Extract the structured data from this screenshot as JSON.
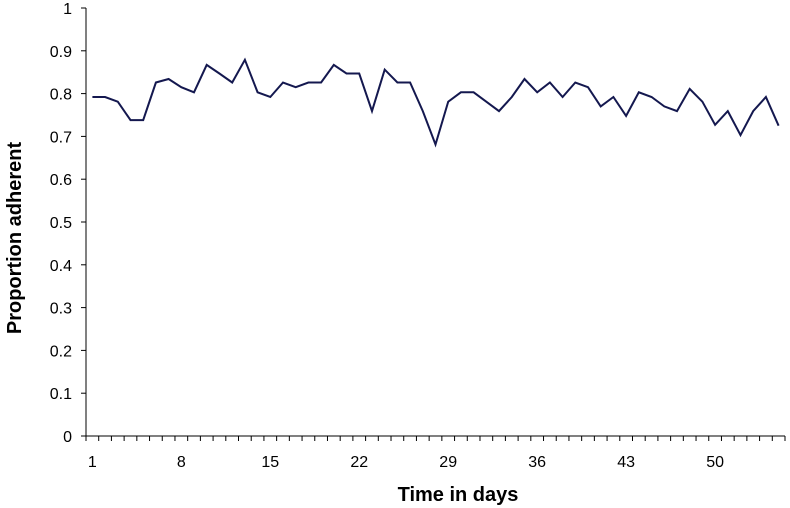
{
  "chart_data": {
    "type": "line",
    "title": "",
    "xlabel": "Time in days",
    "ylabel": "Proportion adherent",
    "xlim": [
      1,
      55
    ],
    "ylim": [
      0,
      1
    ],
    "x_ticks": [
      1,
      8,
      15,
      22,
      29,
      36,
      43,
      50
    ],
    "y_ticks": [
      0,
      0.1,
      0.2,
      0.3,
      0.4,
      0.5,
      0.6,
      0.7,
      0.8,
      0.9,
      1
    ],
    "y_tick_labels": [
      "0",
      "0.1",
      "0.2",
      "0.3",
      "0.4",
      "0.5",
      "0.6",
      "0.7",
      "0.8",
      "0.9",
      "1"
    ],
    "grid": false,
    "legend": "none",
    "line_color": "#14184f",
    "series": [
      {
        "x": [
          1,
          2,
          3,
          4,
          5,
          6,
          7,
          8,
          9,
          10,
          11,
          12,
          13,
          14,
          15,
          16,
          17,
          18,
          19,
          20,
          21,
          22,
          23,
          24,
          25,
          26,
          27,
          28,
          29,
          30,
          31,
          32,
          33,
          34,
          35,
          36,
          37,
          38,
          39,
          40,
          41,
          42,
          43,
          44,
          45,
          46,
          47,
          48,
          49,
          50,
          51,
          52,
          53,
          54,
          55
        ],
        "values": [
          0.792,
          0.792,
          0.781,
          0.738,
          0.738,
          0.826,
          0.834,
          0.815,
          0.803,
          0.867,
          0.847,
          0.826,
          0.879,
          0.803,
          0.792,
          0.826,
          0.815,
          0.826,
          0.826,
          0.867,
          0.847,
          0.847,
          0.759,
          0.856,
          0.826,
          0.826,
          0.759,
          0.681,
          0.781,
          0.803,
          0.803,
          0.781,
          0.759,
          0.792,
          0.834,
          0.803,
          0.826,
          0.792,
          0.826,
          0.815,
          0.77,
          0.792,
          0.748,
          0.803,
          0.792,
          0.77,
          0.759,
          0.811,
          0.781,
          0.727,
          0.759,
          0.703,
          0.759,
          0.792,
          0.725
        ]
      }
    ]
  }
}
